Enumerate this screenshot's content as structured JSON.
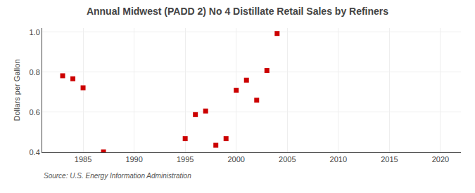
{
  "chart_data": {
    "type": "scatter",
    "title": "Annual Midwest (PADD 2) No 4 Distillate Retail Sales by Refiners",
    "ylabel": "Dollars per Gallon",
    "annotation": "Source: U.S. Energy Information Administration",
    "x": [
      1983,
      1984,
      1985,
      1987,
      1995,
      1996,
      1997,
      1998,
      1999,
      2000,
      2001,
      2002,
      2003,
      2004
    ],
    "values": [
      0.782,
      0.767,
      0.722,
      0.402,
      0.468,
      0.588,
      0.606,
      0.435,
      0.468,
      0.71,
      0.76,
      0.66,
      0.808,
      0.993
    ],
    "color": "#cc0000",
    "marker": "square",
    "xlim": [
      1981,
      2022
    ],
    "ylim": [
      0.4,
      1.02
    ],
    "xticks": [
      1985,
      1990,
      1995,
      2000,
      2005,
      2010,
      2015,
      2020
    ],
    "yticks": [
      0.4,
      0.6,
      0.8,
      {
        "value": 1,
        "label": "1.0"
      }
    ],
    "grid": true
  }
}
